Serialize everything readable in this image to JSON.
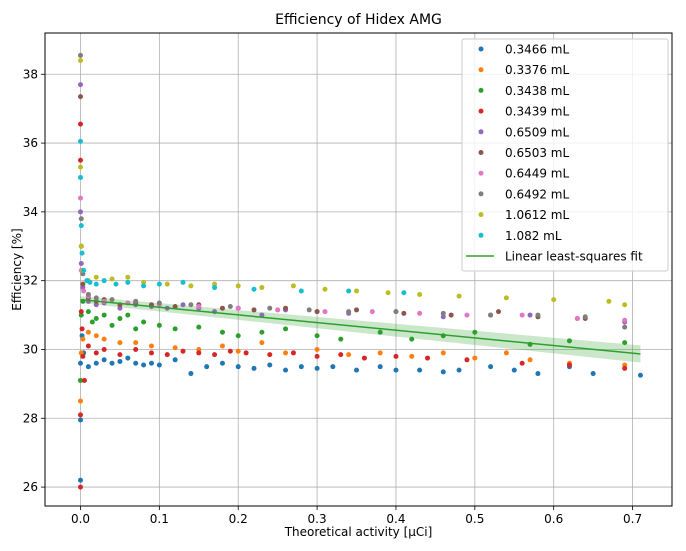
{
  "chart_data": {
    "type": "scatter",
    "title": "Efficiency of Hidex AMG",
    "xlabel": "Theoretical activity [μCi]",
    "ylabel": "Efficiency [%]",
    "xlim": [
      -0.045,
      0.75
    ],
    "ylim": [
      25.45,
      39.2
    ],
    "xticks": [
      0.0,
      0.1,
      0.2,
      0.3,
      0.4,
      0.5,
      0.6,
      0.7
    ],
    "xtick_labels": [
      "0.0",
      "0.1",
      "0.2",
      "0.3",
      "0.4",
      "0.5",
      "0.6",
      "0.7"
    ],
    "yticks": [
      26,
      28,
      30,
      32,
      34,
      36,
      38
    ],
    "ytick_labels": [
      "26",
      "28",
      "30",
      "32",
      "34",
      "36",
      "38"
    ],
    "grid": true,
    "legend_position": "top-right",
    "series": [
      {
        "name": "0.3466 mL",
        "color": "#1f77b4",
        "points": [
          [
            0.0,
            26.2
          ],
          [
            0.0,
            27.95
          ],
          [
            0.0,
            29.6
          ],
          [
            0.002,
            30.4
          ],
          [
            0.004,
            29.9
          ],
          [
            0.01,
            29.5
          ],
          [
            0.02,
            29.6
          ],
          [
            0.03,
            29.7
          ],
          [
            0.04,
            29.6
          ],
          [
            0.05,
            29.65
          ],
          [
            0.06,
            29.75
          ],
          [
            0.07,
            29.6
          ],
          [
            0.08,
            29.55
          ],
          [
            0.09,
            29.6
          ],
          [
            0.1,
            29.55
          ],
          [
            0.12,
            29.7
          ],
          [
            0.14,
            29.3
          ],
          [
            0.16,
            29.5
          ],
          [
            0.18,
            29.6
          ],
          [
            0.2,
            29.5
          ],
          [
            0.22,
            29.45
          ],
          [
            0.24,
            29.55
          ],
          [
            0.26,
            29.4
          ],
          [
            0.28,
            29.5
          ],
          [
            0.3,
            29.45
          ],
          [
            0.32,
            29.5
          ],
          [
            0.35,
            29.4
          ],
          [
            0.38,
            29.5
          ],
          [
            0.4,
            29.4
          ],
          [
            0.43,
            29.4
          ],
          [
            0.46,
            29.35
          ],
          [
            0.48,
            29.4
          ],
          [
            0.52,
            29.5
          ],
          [
            0.55,
            29.4
          ],
          [
            0.58,
            29.3
          ],
          [
            0.62,
            29.5
          ],
          [
            0.65,
            29.3
          ],
          [
            0.71,
            29.25
          ]
        ]
      },
      {
        "name": "0.3376 mL",
        "color": "#ff7f0e",
        "points": [
          [
            0.0,
            28.5
          ],
          [
            0.001,
            29.9
          ],
          [
            0.003,
            30.3
          ],
          [
            0.01,
            30.5
          ],
          [
            0.02,
            30.4
          ],
          [
            0.03,
            30.3
          ],
          [
            0.05,
            30.2
          ],
          [
            0.07,
            30.2
          ],
          [
            0.09,
            30.1
          ],
          [
            0.12,
            30.05
          ],
          [
            0.15,
            30.0
          ],
          [
            0.18,
            30.1
          ],
          [
            0.2,
            29.95
          ],
          [
            0.23,
            30.2
          ],
          [
            0.26,
            29.9
          ],
          [
            0.3,
            30.0
          ],
          [
            0.34,
            29.85
          ],
          [
            0.38,
            29.9
          ],
          [
            0.42,
            29.8
          ],
          [
            0.46,
            29.9
          ],
          [
            0.5,
            29.75
          ],
          [
            0.54,
            29.9
          ],
          [
            0.57,
            29.7
          ],
          [
            0.62,
            29.6
          ],
          [
            0.69,
            29.55
          ]
        ]
      },
      {
        "name": "0.3438 mL",
        "color": "#2ca02c",
        "points": [
          [
            0.0,
            29.1
          ],
          [
            0.001,
            31.0
          ],
          [
            0.003,
            31.4
          ],
          [
            0.01,
            31.1
          ],
          [
            0.015,
            30.8
          ],
          [
            0.02,
            30.9
          ],
          [
            0.03,
            31.0
          ],
          [
            0.04,
            30.7
          ],
          [
            0.05,
            30.9
          ],
          [
            0.06,
            31.0
          ],
          [
            0.07,
            30.6
          ],
          [
            0.08,
            30.8
          ],
          [
            0.1,
            30.7
          ],
          [
            0.12,
            30.6
          ],
          [
            0.15,
            30.65
          ],
          [
            0.18,
            30.5
          ],
          [
            0.2,
            30.4
          ],
          [
            0.23,
            30.5
          ],
          [
            0.26,
            30.6
          ],
          [
            0.3,
            30.4
          ],
          [
            0.33,
            30.3
          ],
          [
            0.38,
            30.5
          ],
          [
            0.42,
            30.3
          ],
          [
            0.46,
            30.4
          ],
          [
            0.5,
            30.5
          ],
          [
            0.57,
            30.15
          ],
          [
            0.62,
            30.25
          ],
          [
            0.69,
            30.2
          ]
        ]
      },
      {
        "name": "0.3439 mL",
        "color": "#d62728",
        "points": [
          [
            0.0,
            26.0
          ],
          [
            0.0,
            28.1
          ],
          [
            0.0,
            36.55
          ],
          [
            0.0,
            35.5
          ],
          [
            0.001,
            31.1
          ],
          [
            0.002,
            30.6
          ],
          [
            0.003,
            29.8
          ],
          [
            0.005,
            29.1
          ],
          [
            0.01,
            30.1
          ],
          [
            0.02,
            29.9
          ],
          [
            0.03,
            30.0
          ],
          [
            0.05,
            29.85
          ],
          [
            0.07,
            30.0
          ],
          [
            0.09,
            29.9
          ],
          [
            0.11,
            29.85
          ],
          [
            0.13,
            29.95
          ],
          [
            0.15,
            29.9
          ],
          [
            0.17,
            29.85
          ],
          [
            0.19,
            29.95
          ],
          [
            0.21,
            29.9
          ],
          [
            0.24,
            29.85
          ],
          [
            0.27,
            29.9
          ],
          [
            0.3,
            29.8
          ],
          [
            0.33,
            29.85
          ],
          [
            0.36,
            29.75
          ],
          [
            0.4,
            29.8
          ],
          [
            0.44,
            29.75
          ],
          [
            0.49,
            29.7
          ],
          [
            0.56,
            29.6
          ],
          [
            0.62,
            29.55
          ],
          [
            0.69,
            29.45
          ]
        ]
      },
      {
        "name": "0.6509 mL",
        "color": "#9467bd",
        "points": [
          [
            0.0,
            37.7
          ],
          [
            0.0,
            34.0
          ],
          [
            0.001,
            32.5
          ],
          [
            0.003,
            31.8
          ],
          [
            0.01,
            31.4
          ],
          [
            0.02,
            31.3
          ],
          [
            0.03,
            31.35
          ],
          [
            0.05,
            31.2
          ],
          [
            0.07,
            31.3
          ],
          [
            0.09,
            31.25
          ],
          [
            0.11,
            31.2
          ],
          [
            0.13,
            31.3
          ],
          [
            0.15,
            31.2
          ],
          [
            0.17,
            31.1
          ],
          [
            0.2,
            31.2
          ],
          [
            0.23,
            31.0
          ],
          [
            0.26,
            31.15
          ],
          [
            0.3,
            31.1
          ],
          [
            0.34,
            31.05
          ],
          [
            0.4,
            31.1
          ],
          [
            0.46,
            30.95
          ],
          [
            0.52,
            31.0
          ],
          [
            0.57,
            31.0
          ],
          [
            0.63,
            30.9
          ],
          [
            0.69,
            30.8
          ]
        ]
      },
      {
        "name": "0.6503 mL",
        "color": "#8c564b",
        "points": [
          [
            0.0,
            37.35
          ],
          [
            0.001,
            33.0
          ],
          [
            0.003,
            31.9
          ],
          [
            0.01,
            31.5
          ],
          [
            0.02,
            31.4
          ],
          [
            0.03,
            31.45
          ],
          [
            0.05,
            31.3
          ],
          [
            0.07,
            31.35
          ],
          [
            0.09,
            31.3
          ],
          [
            0.12,
            31.25
          ],
          [
            0.15,
            31.3
          ],
          [
            0.18,
            31.2
          ],
          [
            0.22,
            31.15
          ],
          [
            0.26,
            31.2
          ],
          [
            0.3,
            31.1
          ],
          [
            0.35,
            31.15
          ],
          [
            0.41,
            31.05
          ],
          [
            0.47,
            31.0
          ],
          [
            0.53,
            31.1
          ],
          [
            0.58,
            30.95
          ],
          [
            0.64,
            30.9
          ]
        ]
      },
      {
        "name": "0.6449 mL",
        "color": "#e377c2",
        "points": [
          [
            0.0,
            34.4
          ],
          [
            0.001,
            32.3
          ],
          [
            0.004,
            31.7
          ],
          [
            0.01,
            31.55
          ],
          [
            0.03,
            31.4
          ],
          [
            0.06,
            31.35
          ],
          [
            0.1,
            31.3
          ],
          [
            0.15,
            31.25
          ],
          [
            0.2,
            31.2
          ],
          [
            0.25,
            31.15
          ],
          [
            0.31,
            31.1
          ],
          [
            0.37,
            31.1
          ],
          [
            0.43,
            31.05
          ],
          [
            0.49,
            31.0
          ],
          [
            0.56,
            31.0
          ],
          [
            0.63,
            30.9
          ],
          [
            0.69,
            30.85
          ]
        ]
      },
      {
        "name": "0.6492 mL",
        "color": "#7f7f7f",
        "points": [
          [
            0.0,
            38.55
          ],
          [
            0.001,
            33.8
          ],
          [
            0.003,
            32.2
          ],
          [
            0.01,
            31.6
          ],
          [
            0.02,
            31.5
          ],
          [
            0.04,
            31.45
          ],
          [
            0.07,
            31.4
          ],
          [
            0.1,
            31.35
          ],
          [
            0.14,
            31.3
          ],
          [
            0.19,
            31.25
          ],
          [
            0.24,
            31.2
          ],
          [
            0.29,
            31.15
          ],
          [
            0.34,
            31.1
          ],
          [
            0.4,
            31.1
          ],
          [
            0.46,
            31.05
          ],
          [
            0.52,
            31.0
          ],
          [
            0.58,
            31.0
          ],
          [
            0.64,
            30.95
          ],
          [
            0.69,
            30.65
          ]
        ]
      },
      {
        "name": "1.0612 mL",
        "color": "#bcbd22",
        "points": [
          [
            0.0,
            38.4
          ],
          [
            0.0,
            35.3
          ],
          [
            0.001,
            33.0
          ],
          [
            0.003,
            32.3
          ],
          [
            0.01,
            32.0
          ],
          [
            0.02,
            32.1
          ],
          [
            0.04,
            32.05
          ],
          [
            0.06,
            32.1
          ],
          [
            0.08,
            31.95
          ],
          [
            0.11,
            31.9
          ],
          [
            0.14,
            31.85
          ],
          [
            0.17,
            31.9
          ],
          [
            0.2,
            31.85
          ],
          [
            0.23,
            31.8
          ],
          [
            0.27,
            31.85
          ],
          [
            0.31,
            31.75
          ],
          [
            0.35,
            31.7
          ],
          [
            0.39,
            31.65
          ],
          [
            0.43,
            31.6
          ],
          [
            0.48,
            31.55
          ],
          [
            0.54,
            31.5
          ],
          [
            0.6,
            31.45
          ],
          [
            0.67,
            31.4
          ],
          [
            0.69,
            31.3
          ]
        ]
      },
      {
        "name": "1.082 mL",
        "color": "#17becf",
        "points": [
          [
            0.0,
            36.05
          ],
          [
            0.0,
            35.0
          ],
          [
            0.001,
            33.6
          ],
          [
            0.002,
            32.8
          ],
          [
            0.004,
            32.3
          ],
          [
            0.008,
            32.0
          ],
          [
            0.012,
            31.95
          ],
          [
            0.02,
            31.9
          ],
          [
            0.03,
            32.0
          ],
          [
            0.045,
            31.9
          ],
          [
            0.06,
            31.95
          ],
          [
            0.08,
            31.85
          ],
          [
            0.1,
            31.9
          ],
          [
            0.13,
            31.95
          ],
          [
            0.17,
            31.8
          ],
          [
            0.22,
            31.75
          ],
          [
            0.28,
            31.7
          ],
          [
            0.34,
            31.7
          ],
          [
            0.41,
            31.65
          ]
        ]
      }
    ],
    "fit": {
      "name": "Linear least-squares fit",
      "color": "#2ca02c",
      "x": [
        0.0,
        0.71
      ],
      "y": [
        31.45,
        29.87
      ],
      "band_lower": [
        31.35,
        29.62
      ],
      "band_upper": [
        31.55,
        30.12
      ]
    }
  }
}
